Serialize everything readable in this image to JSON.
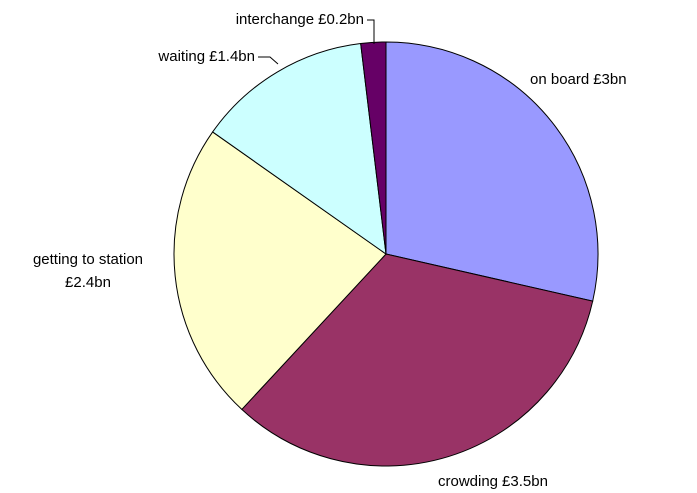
{
  "chart_data": {
    "type": "pie",
    "categories": [
      "on board",
      "crowding",
      "getting to station",
      "waiting",
      "interchange"
    ],
    "values": [
      3,
      3.5,
      2.4,
      1.4,
      0.2
    ],
    "value_labels": [
      "£3bn",
      "£3.5bn",
      "£2.4bn",
      "£1.4bn",
      "£0.2bn"
    ],
    "colors": [
      "#9999ff",
      "#993366",
      "#ffffcc",
      "#ccffff",
      "#660066"
    ]
  }
}
